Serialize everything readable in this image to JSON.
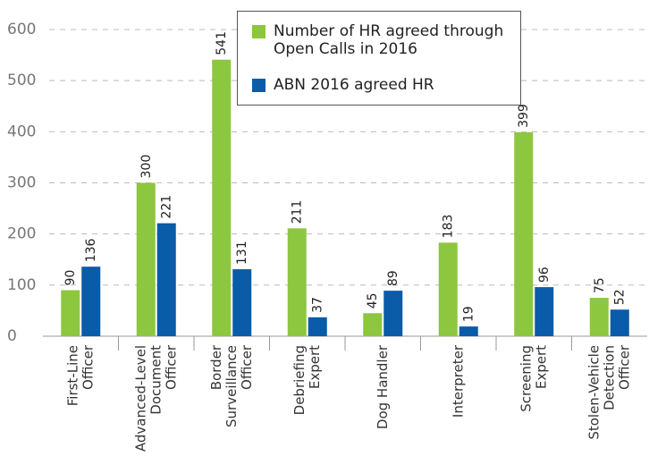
{
  "chart_data": {
    "type": "bar",
    "categories": [
      [
        "First-Line",
        "Officer"
      ],
      [
        "Advanced-Level",
        "Document",
        "Officer"
      ],
      [
        "Border",
        "Surveillance",
        "Officer"
      ],
      [
        "Debriefing",
        "Expert"
      ],
      [
        "Dog Handler"
      ],
      [
        "Interpreter"
      ],
      [
        "Screening",
        "Expert"
      ],
      [
        "Stolen-Vehicle",
        "Detection",
        "Officer"
      ]
    ],
    "series": [
      {
        "name": "Number of HR agreed through Open Calls in 2016",
        "color": "#8dc63f",
        "values": [
          90,
          300,
          541,
          211,
          45,
          183,
          399,
          75
        ]
      },
      {
        "name": "ABN 2016 agreed HR",
        "color": "#0a5ba8",
        "values": [
          136,
          221,
          131,
          37,
          89,
          19,
          96,
          52
        ]
      }
    ],
    "ylim": [
      0,
      600
    ],
    "yticks": [
      0,
      100,
      200,
      300,
      400,
      500,
      600
    ],
    "grid": true,
    "legend": "top"
  }
}
